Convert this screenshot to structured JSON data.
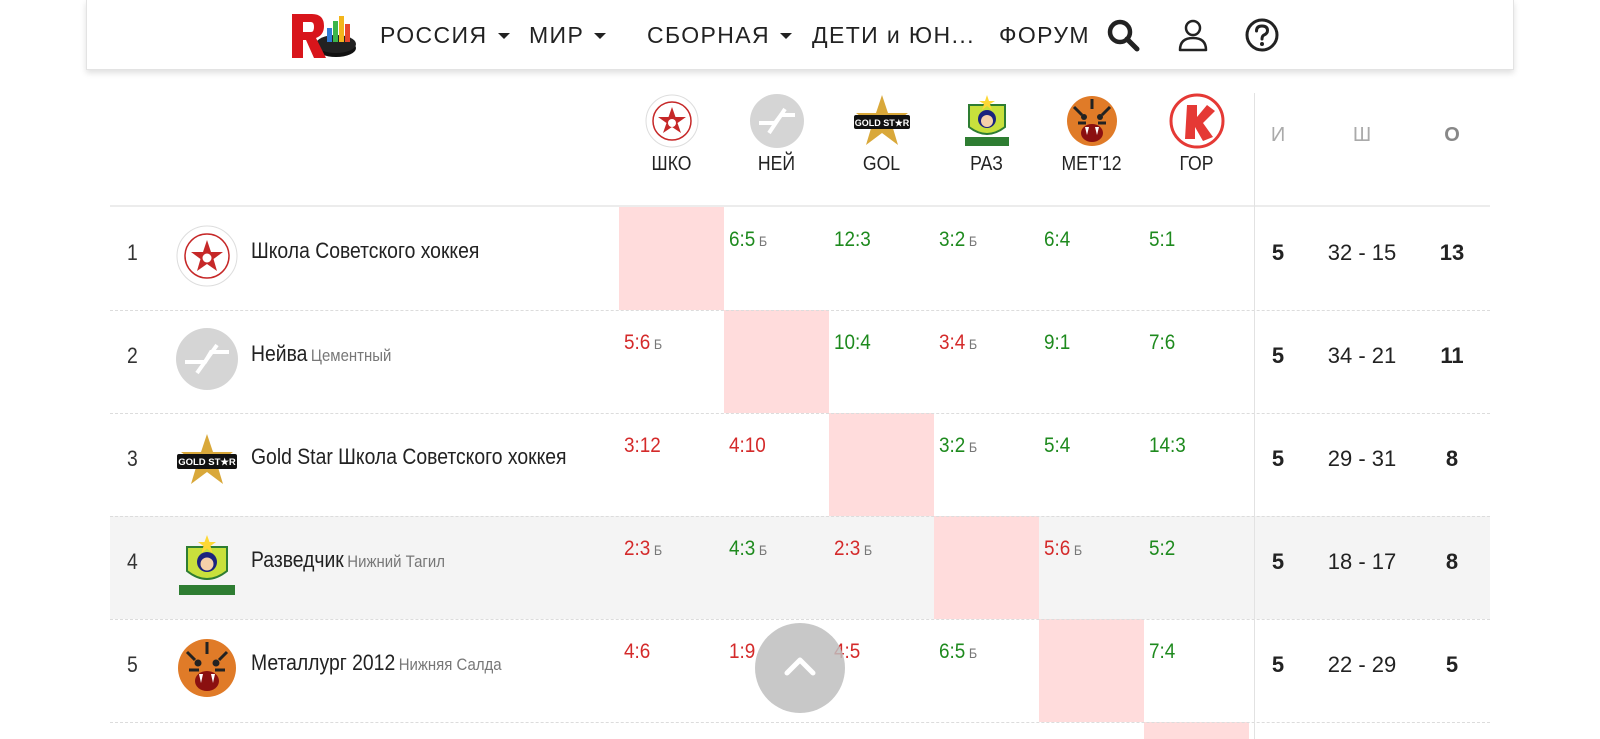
{
  "nav": {
    "items": [
      {
        "label": "РОССИЯ",
        "dropdown": true
      },
      {
        "label": "МИР",
        "dropdown": true
      },
      {
        "label": "СБОРНАЯ",
        "dropdown": true
      },
      {
        "label": "ДЕТИ и ЮН...",
        "dropdown": false
      },
      {
        "label": "ФОРУМ",
        "dropdown": false
      }
    ],
    "icons": [
      "search-icon",
      "user-icon",
      "help-icon"
    ]
  },
  "table": {
    "columns": [
      "ШКО",
      "НЕЙ",
      "GOL",
      "РАЗ",
      "МЕТ'12",
      "ГОР"
    ],
    "stat_headers": {
      "games": "И",
      "goals": "Ш",
      "points": "О"
    },
    "rows": [
      {
        "rank": "1",
        "name": "Школа Советского хоккея",
        "city": "",
        "highlight": false,
        "scores": [
          null,
          {
            "s": "6:5",
            "ot": "Б",
            "r": "win"
          },
          {
            "s": "12:3",
            "ot": "",
            "r": "win"
          },
          {
            "s": "3:2",
            "ot": "Б",
            "r": "win"
          },
          {
            "s": "6:4",
            "ot": "",
            "r": "win"
          },
          {
            "s": "5:1",
            "ot": "",
            "r": "win"
          }
        ],
        "games": "5",
        "goals": "32 - 15",
        "points": "13"
      },
      {
        "rank": "2",
        "name": "Нейва",
        "city": "Цементный",
        "highlight": false,
        "scores": [
          {
            "s": "5:6",
            "ot": "Б",
            "r": "loss"
          },
          null,
          {
            "s": "10:4",
            "ot": "",
            "r": "win"
          },
          {
            "s": "3:4",
            "ot": "Б",
            "r": "loss"
          },
          {
            "s": "9:1",
            "ot": "",
            "r": "win"
          },
          {
            "s": "7:6",
            "ot": "",
            "r": "win"
          }
        ],
        "games": "5",
        "goals": "34 - 21",
        "points": "11"
      },
      {
        "rank": "3",
        "name": "Gold Star Школа Советского хоккея",
        "city": "",
        "highlight": false,
        "scores": [
          {
            "s": "3:12",
            "ot": "",
            "r": "loss"
          },
          {
            "s": "4:10",
            "ot": "",
            "r": "loss"
          },
          null,
          {
            "s": "3:2",
            "ot": "Б",
            "r": "win"
          },
          {
            "s": "5:4",
            "ot": "",
            "r": "win"
          },
          {
            "s": "14:3",
            "ot": "",
            "r": "win"
          }
        ],
        "games": "5",
        "goals": "29 - 31",
        "points": "8"
      },
      {
        "rank": "4",
        "name": "Разведчик",
        "city": "Нижний Тагил",
        "highlight": true,
        "scores": [
          {
            "s": "2:3",
            "ot": "Б",
            "r": "loss"
          },
          {
            "s": "4:3",
            "ot": "Б",
            "r": "win"
          },
          {
            "s": "2:3",
            "ot": "Б",
            "r": "loss"
          },
          null,
          {
            "s": "5:6",
            "ot": "Б",
            "r": "loss"
          },
          {
            "s": "5:2",
            "ot": "",
            "r": "win"
          }
        ],
        "games": "5",
        "goals": "18 - 17",
        "points": "8"
      },
      {
        "rank": "5",
        "name": "Металлург 2012",
        "city": "Нижняя Салда",
        "highlight": false,
        "scores": [
          {
            "s": "4:6",
            "ot": "",
            "r": "loss"
          },
          {
            "s": "1:9",
            "ot": "",
            "r": "loss"
          },
          {
            "s": "4:5",
            "ot": "",
            "r": "loss"
          },
          {
            "s": "6:5",
            "ot": "Б",
            "r": "win"
          },
          null,
          {
            "s": "7:4",
            "ot": "",
            "r": "win"
          }
        ],
        "games": "5",
        "goals": "22 - 29",
        "points": "5"
      }
    ]
  },
  "colors": {
    "win": "#1e8a1e",
    "loss": "#d42a2a",
    "diagonal": "#ffdcdc",
    "highlight_row": "#f4f4f4"
  },
  "team_logos": [
    "shko-logo",
    "neyva-logo",
    "gold-star-logo",
    "razvedchik-logo",
    "tiger-logo",
    "gornyak-logo"
  ]
}
